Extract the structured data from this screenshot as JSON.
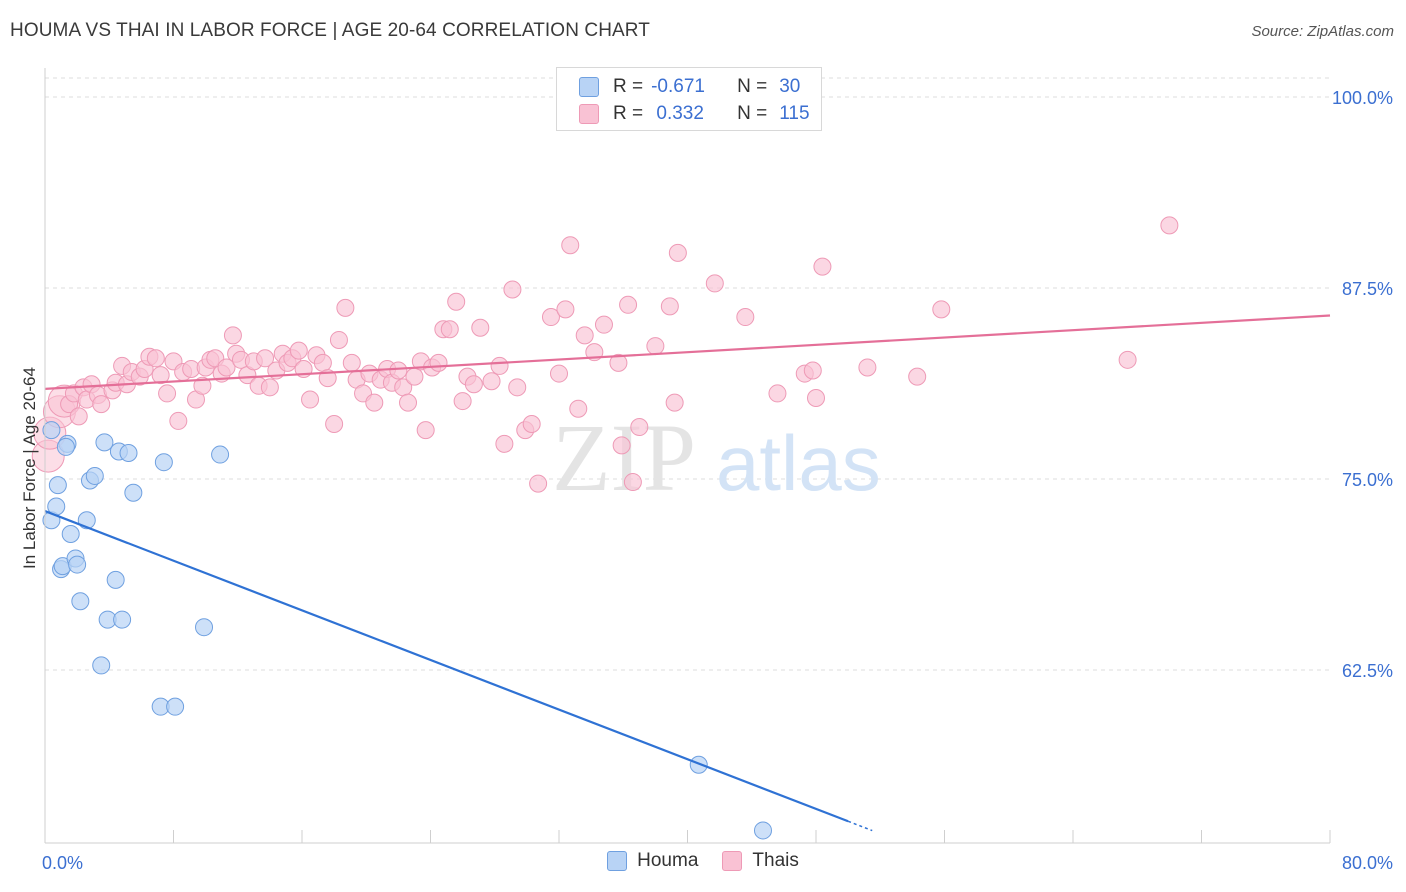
{
  "title": "HOUMA VS THAI IN LABOR FORCE | AGE 20-64 CORRELATION CHART",
  "source": "Source: ZipAtlas.com",
  "watermark": {
    "part1": "ZIP",
    "part2": "atlas"
  },
  "colors": {
    "houma_fill": "#b8d3f5",
    "houma_stroke": "#6fa0e0",
    "houma_line": "#2f72d4",
    "thai_fill": "#f9c2d4",
    "thai_stroke": "#ee9ab6",
    "thai_line": "#e46f98",
    "axis_text": "#3b6fd1",
    "grid": "#dddddd"
  },
  "legend": {
    "rows": [
      {
        "r_label": "R =",
        "r_value": "-0.671",
        "n_label": "N =",
        "n_value": "30"
      },
      {
        "r_label": "R =",
        "r_value": " 0.332",
        "n_label": "N =",
        "n_value": "115"
      }
    ]
  },
  "series_legend": {
    "houma": "Houma",
    "thai": "Thais"
  },
  "chart_data": {
    "type": "scatter",
    "title": "HOUMA VS THAI IN LABOR FORCE | AGE 20-64 CORRELATION CHART",
    "xlabel": "",
    "ylabel": "In Labor Force | Age 20-64",
    "xlim": [
      0,
      80
    ],
    "ylim": [
      52,
      101
    ],
    "x_tick_labels": [
      "0.0%",
      "80.0%"
    ],
    "y_ticks": [
      62.5,
      75.0,
      87.5,
      100.0
    ],
    "y_tick_labels": [
      "62.5%",
      "75.0%",
      "87.5%",
      "100.0%"
    ],
    "grid": true,
    "legend_position": "bottom",
    "series": [
      {
        "name": "Houma",
        "r": -0.671,
        "n": 30,
        "trend": {
          "x0": 0,
          "y0": 72.9,
          "x1": 50,
          "y1": 52.6,
          "dash_to_x": 51.5
        },
        "points": [
          [
            0.4,
            78.2
          ],
          [
            0.4,
            72.3
          ],
          [
            0.7,
            73.2
          ],
          [
            0.8,
            74.6
          ],
          [
            1.0,
            69.1
          ],
          [
            1.1,
            69.3
          ],
          [
            1.4,
            77.3
          ],
          [
            1.3,
            77.1
          ],
          [
            1.6,
            71.4
          ],
          [
            1.9,
            69.8
          ],
          [
            2.0,
            69.4
          ],
          [
            2.2,
            67.0
          ],
          [
            2.6,
            72.3
          ],
          [
            2.8,
            74.9
          ],
          [
            3.1,
            75.2
          ],
          [
            3.5,
            62.8
          ],
          [
            3.7,
            77.4
          ],
          [
            3.9,
            65.8
          ],
          [
            4.4,
            68.4
          ],
          [
            4.6,
            76.8
          ],
          [
            4.8,
            65.8
          ],
          [
            5.2,
            76.7
          ],
          [
            5.5,
            74.1
          ],
          [
            7.2,
            60.1
          ],
          [
            7.4,
            76.1
          ],
          [
            8.1,
            60.1
          ],
          [
            9.9,
            65.3
          ],
          [
            10.9,
            76.6
          ],
          [
            40.7,
            56.3
          ],
          [
            44.7,
            52.0
          ]
        ]
      },
      {
        "name": "Thais",
        "r": 0.332,
        "n": 115,
        "trend": {
          "x0": 0,
          "y0": 80.9,
          "x1": 80,
          "y1": 85.7
        },
        "points": [
          [
            0.2,
            76.5
          ],
          [
            0.3,
            78.0
          ],
          [
            0.9,
            79.4
          ],
          [
            1.2,
            80.1
          ],
          [
            1.5,
            79.9
          ],
          [
            1.8,
            80.6
          ],
          [
            2.1,
            79.1
          ],
          [
            2.4,
            81.0
          ],
          [
            2.6,
            80.2
          ],
          [
            2.9,
            81.2
          ],
          [
            3.3,
            80.5
          ],
          [
            3.5,
            79.9
          ],
          [
            4.2,
            80.8
          ],
          [
            4.4,
            81.3
          ],
          [
            4.8,
            82.4
          ],
          [
            5.1,
            81.2
          ],
          [
            5.4,
            82.0
          ],
          [
            5.9,
            81.7
          ],
          [
            6.2,
            82.2
          ],
          [
            6.5,
            83.0
          ],
          [
            6.9,
            82.9
          ],
          [
            7.2,
            81.8
          ],
          [
            7.6,
            80.6
          ],
          [
            8.0,
            82.7
          ],
          [
            8.3,
            78.8
          ],
          [
            8.6,
            82.0
          ],
          [
            9.1,
            82.2
          ],
          [
            9.4,
            80.2
          ],
          [
            9.8,
            81.1
          ],
          [
            10.0,
            82.3
          ],
          [
            10.3,
            82.8
          ],
          [
            10.6,
            82.9
          ],
          [
            11.0,
            81.9
          ],
          [
            11.3,
            82.3
          ],
          [
            11.7,
            84.4
          ],
          [
            11.9,
            83.2
          ],
          [
            12.2,
            82.8
          ],
          [
            12.6,
            81.8
          ],
          [
            13.0,
            82.7
          ],
          [
            13.3,
            81.1
          ],
          [
            13.7,
            82.9
          ],
          [
            14.0,
            81.0
          ],
          [
            14.4,
            82.1
          ],
          [
            14.8,
            83.2
          ],
          [
            15.1,
            82.6
          ],
          [
            15.4,
            82.9
          ],
          [
            15.8,
            83.4
          ],
          [
            16.1,
            82.2
          ],
          [
            16.5,
            80.2
          ],
          [
            16.9,
            83.1
          ],
          [
            17.3,
            82.6
          ],
          [
            17.6,
            81.6
          ],
          [
            18.0,
            78.6
          ],
          [
            18.3,
            84.1
          ],
          [
            18.7,
            86.2
          ],
          [
            19.1,
            82.6
          ],
          [
            19.4,
            81.5
          ],
          [
            19.8,
            80.6
          ],
          [
            20.2,
            81.9
          ],
          [
            20.5,
            80.0
          ],
          [
            20.9,
            81.5
          ],
          [
            21.3,
            82.2
          ],
          [
            21.6,
            81.3
          ],
          [
            22.0,
            82.1
          ],
          [
            22.3,
            81.0
          ],
          [
            22.6,
            80.0
          ],
          [
            23.0,
            81.7
          ],
          [
            23.4,
            82.7
          ],
          [
            23.7,
            78.2
          ],
          [
            24.1,
            82.3
          ],
          [
            24.5,
            82.6
          ],
          [
            24.8,
            84.8
          ],
          [
            25.2,
            84.8
          ],
          [
            25.6,
            86.6
          ],
          [
            26.0,
            80.1
          ],
          [
            26.3,
            81.7
          ],
          [
            26.7,
            81.2
          ],
          [
            27.1,
            84.9
          ],
          [
            27.8,
            81.4
          ],
          [
            28.3,
            82.4
          ],
          [
            28.6,
            77.3
          ],
          [
            29.1,
            87.4
          ],
          [
            29.4,
            81.0
          ],
          [
            29.9,
            78.2
          ],
          [
            30.3,
            78.6
          ],
          [
            30.7,
            74.7
          ],
          [
            31.5,
            85.6
          ],
          [
            32.0,
            81.9
          ],
          [
            32.4,
            86.1
          ],
          [
            32.7,
            90.3
          ],
          [
            33.2,
            79.6
          ],
          [
            33.6,
            84.4
          ],
          [
            34.2,
            83.3
          ],
          [
            34.8,
            85.1
          ],
          [
            35.7,
            82.6
          ],
          [
            35.9,
            77.2
          ],
          [
            36.3,
            86.4
          ],
          [
            36.6,
            74.8
          ],
          [
            37.0,
            78.4
          ],
          [
            38.0,
            83.7
          ],
          [
            38.9,
            86.3
          ],
          [
            39.2,
            80.0
          ],
          [
            39.4,
            89.8
          ],
          [
            41.7,
            87.8
          ],
          [
            43.6,
            85.6
          ],
          [
            45.6,
            80.6
          ],
          [
            47.3,
            81.9
          ],
          [
            47.8,
            82.1
          ],
          [
            48.0,
            80.3
          ],
          [
            48.4,
            88.9
          ],
          [
            51.2,
            82.3
          ],
          [
            54.3,
            81.7
          ],
          [
            55.8,
            86.1
          ],
          [
            67.4,
            82.8
          ],
          [
            70.0,
            91.6
          ]
        ]
      }
    ]
  }
}
